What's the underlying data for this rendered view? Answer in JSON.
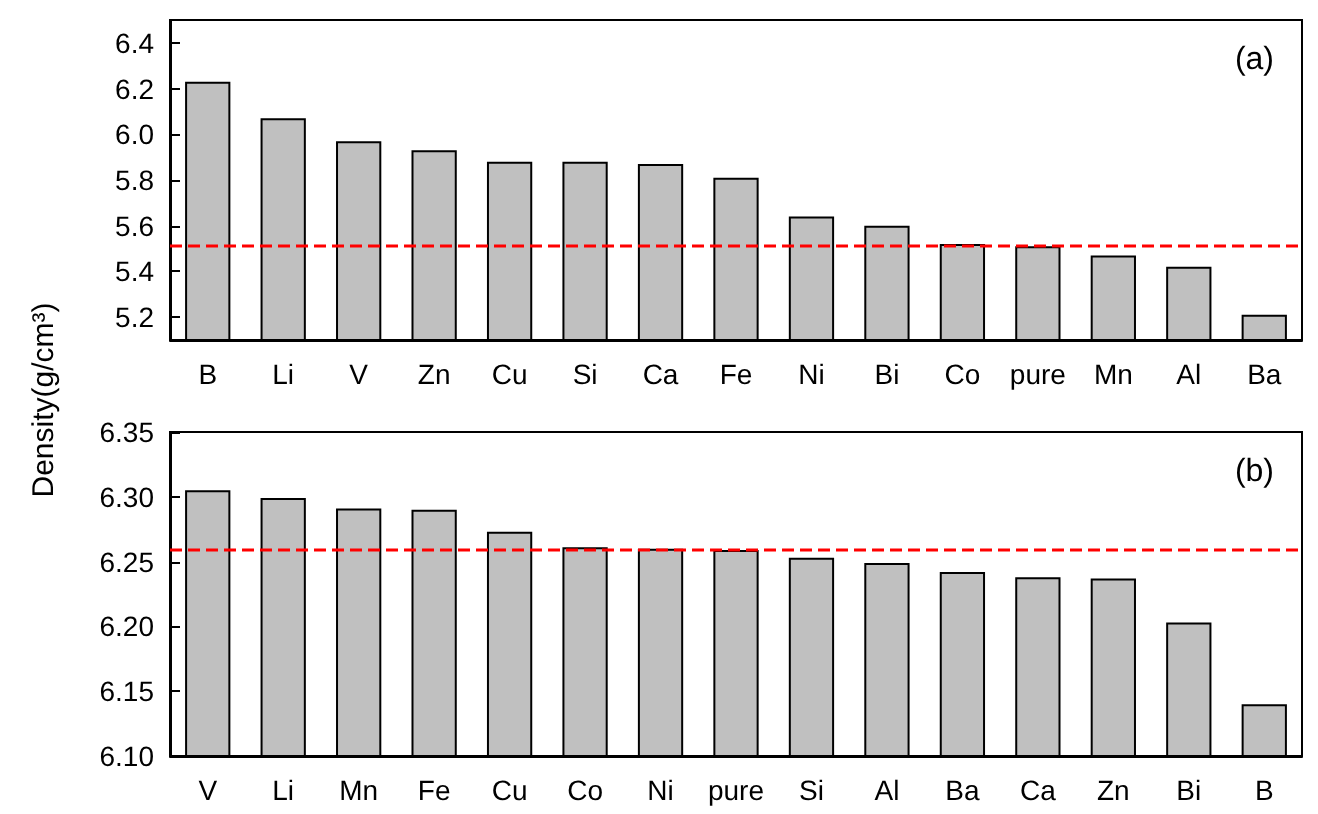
{
  "chart_data": [
    {
      "type": "bar",
      "ylabel": "Density(g/cm³)",
      "annotations": [
        "(a)"
      ],
      "categories": [
        "B",
        "Li",
        "V",
        "Zn",
        "Cu",
        "Si",
        "Ca",
        "Fe",
        "Ni",
        "Bi",
        "Co",
        "pure",
        "Mn",
        "Al",
        "Ba"
      ],
      "values": [
        6.23,
        6.07,
        5.97,
        5.93,
        5.88,
        5.88,
        5.87,
        5.81,
        5.64,
        5.6,
        5.52,
        5.51,
        5.47,
        5.42,
        5.21
      ],
      "color": "#c0c0c0",
      "ylim": [
        5.1,
        6.5
      ],
      "yticks": [
        5.2,
        5.4,
        5.6,
        5.8,
        {
          "value": 6,
          "label": "6.0"
        },
        6.2,
        6.4
      ],
      "grid": false,
      "ref_lines": [
        {
          "axis": "y",
          "value": 5.51,
          "color": "#ff0000",
          "line_style": "dashed"
        }
      ]
    },
    {
      "type": "bar",
      "annotations": [
        "(b)"
      ],
      "categories": [
        "V",
        "Li",
        "Mn",
        "Fe",
        "Cu",
        "Co",
        "Ni",
        "pure",
        "Si",
        "Al",
        "Ba",
        "Ca",
        "Zn",
        "Bi",
        "B"
      ],
      "values": [
        6.305,
        6.299,
        6.291,
        6.29,
        6.273,
        6.261,
        6.26,
        6.259,
        6.253,
        6.249,
        6.242,
        6.238,
        6.237,
        6.203,
        6.14
      ],
      "color": "#c0c0c0",
      "ylim": [
        6.1,
        6.35
      ],
      "yticks": [
        {
          "value": 6.1,
          "label": "6.10"
        },
        6.15,
        {
          "value": 6.2,
          "label": "6.20"
        },
        6.25,
        {
          "value": 6.3,
          "label": "6.30"
        },
        6.35
      ],
      "grid": false,
      "ref_lines": [
        {
          "axis": "y",
          "value": 6.26,
          "color": "#ff0000",
          "line_style": "dashed"
        }
      ]
    }
  ]
}
